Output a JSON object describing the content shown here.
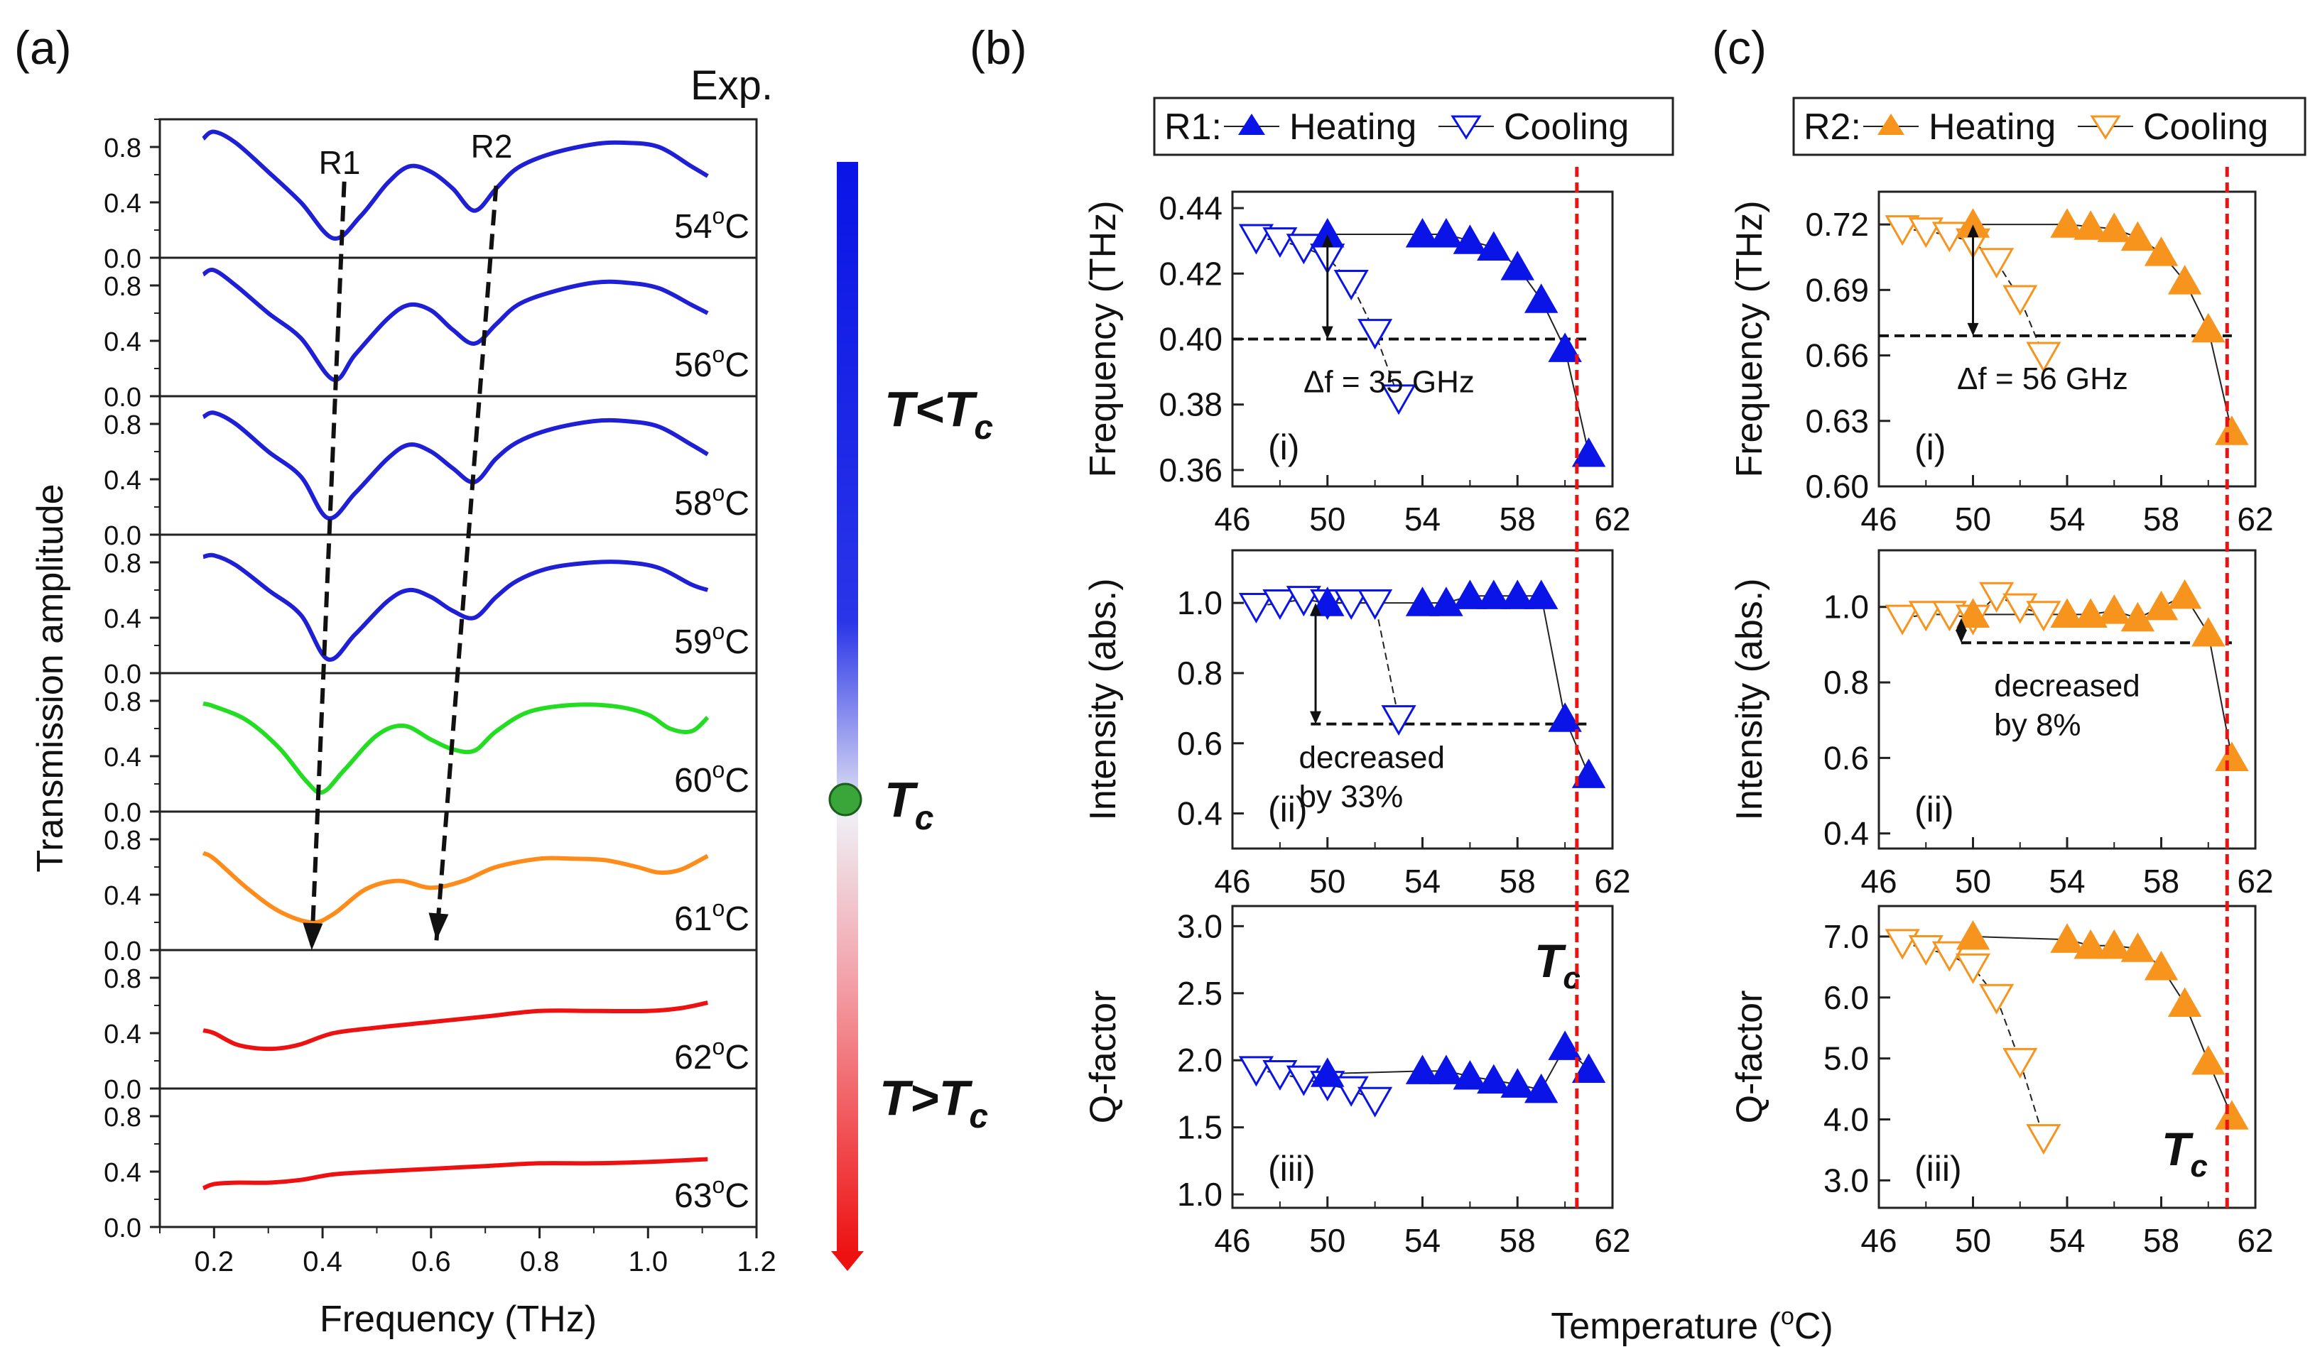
{
  "panel_labels": {
    "a": "(a)",
    "b": "(b)",
    "c": "(c)"
  },
  "colors": {
    "blue": "#1f1fd6",
    "green": "#22dd22",
    "orange": "#ff8c1a",
    "red": "#ee1111",
    "darkgreen": "#2f8a2f",
    "marker_blue": "#0a14e6",
    "marker_orange": "#f7941d"
  },
  "chart_data": [
    {
      "id": "a",
      "type": "line",
      "title": "Exp.",
      "xlabel": "Frequency (THz)",
      "ylabel": "Transmission amplitude",
      "xlim": [
        0.1,
        1.2
      ],
      "xticks": [
        "0.2",
        "0.4",
        "0.6",
        "0.8",
        "1.0",
        "1.2"
      ],
      "ylim": [
        0,
        1
      ],
      "yticks": [
        "0.0",
        "0.4",
        "0.8"
      ],
      "resonance_labels": [
        "R1",
        "R2"
      ],
      "series": [
        {
          "name": "54°C",
          "temp": "54",
          "color": "blue",
          "x": [
            0.18,
            0.2,
            0.24,
            0.3,
            0.36,
            0.42,
            0.47,
            0.52,
            0.56,
            0.6,
            0.64,
            0.68,
            0.72,
            0.76,
            0.82,
            0.9,
            0.96,
            1.02,
            1.08,
            1.11
          ],
          "y": [
            0.86,
            0.91,
            0.83,
            0.62,
            0.4,
            0.14,
            0.3,
            0.54,
            0.66,
            0.62,
            0.5,
            0.34,
            0.5,
            0.65,
            0.75,
            0.82,
            0.83,
            0.8,
            0.66,
            0.59
          ]
        },
        {
          "name": "56°C",
          "temp": "56",
          "color": "blue",
          "x": [
            0.18,
            0.2,
            0.24,
            0.3,
            0.36,
            0.42,
            0.46,
            0.52,
            0.56,
            0.6,
            0.64,
            0.68,
            0.72,
            0.76,
            0.82,
            0.9,
            0.96,
            1.02,
            1.08,
            1.11
          ],
          "y": [
            0.88,
            0.91,
            0.8,
            0.6,
            0.42,
            0.12,
            0.3,
            0.56,
            0.66,
            0.62,
            0.48,
            0.38,
            0.52,
            0.66,
            0.75,
            0.82,
            0.82,
            0.78,
            0.66,
            0.6
          ]
        },
        {
          "name": "58°C",
          "temp": "58",
          "color": "blue",
          "x": [
            0.18,
            0.2,
            0.24,
            0.3,
            0.36,
            0.41,
            0.46,
            0.52,
            0.56,
            0.6,
            0.64,
            0.68,
            0.72,
            0.76,
            0.82,
            0.9,
            0.96,
            1.02,
            1.08,
            1.11
          ],
          "y": [
            0.85,
            0.88,
            0.8,
            0.6,
            0.42,
            0.12,
            0.3,
            0.55,
            0.65,
            0.6,
            0.48,
            0.38,
            0.55,
            0.67,
            0.76,
            0.82,
            0.82,
            0.78,
            0.65,
            0.58
          ]
        },
        {
          "name": "59°C",
          "temp": "59",
          "color": "blue",
          "x": [
            0.18,
            0.2,
            0.24,
            0.3,
            0.36,
            0.41,
            0.46,
            0.52,
            0.56,
            0.6,
            0.64,
            0.68,
            0.72,
            0.76,
            0.82,
            0.9,
            0.96,
            1.02,
            1.08,
            1.11
          ],
          "y": [
            0.84,
            0.85,
            0.78,
            0.6,
            0.42,
            0.1,
            0.28,
            0.52,
            0.6,
            0.55,
            0.45,
            0.4,
            0.55,
            0.67,
            0.76,
            0.8,
            0.8,
            0.76,
            0.64,
            0.6
          ]
        },
        {
          "name": "60°C",
          "temp": "60",
          "color": "green",
          "x": [
            0.18,
            0.2,
            0.26,
            0.32,
            0.37,
            0.4,
            0.44,
            0.5,
            0.55,
            0.6,
            0.64,
            0.68,
            0.72,
            0.78,
            0.86,
            0.94,
            1.0,
            1.04,
            1.08,
            1.11
          ],
          "y": [
            0.78,
            0.76,
            0.66,
            0.46,
            0.22,
            0.14,
            0.3,
            0.55,
            0.62,
            0.52,
            0.45,
            0.44,
            0.58,
            0.72,
            0.77,
            0.76,
            0.7,
            0.6,
            0.58,
            0.68
          ]
        },
        {
          "name": "61°C",
          "temp": "61",
          "color": "orange",
          "x": [
            0.18,
            0.2,
            0.26,
            0.32,
            0.38,
            0.42,
            0.48,
            0.54,
            0.6,
            0.66,
            0.72,
            0.8,
            0.86,
            0.92,
            0.98,
            1.02,
            1.06,
            1.11
          ],
          "y": [
            0.7,
            0.66,
            0.45,
            0.28,
            0.2,
            0.26,
            0.44,
            0.5,
            0.45,
            0.5,
            0.6,
            0.66,
            0.66,
            0.65,
            0.6,
            0.56,
            0.58,
            0.68
          ]
        },
        {
          "name": "62°C",
          "temp": "62",
          "color": "red",
          "x": [
            0.18,
            0.2,
            0.24,
            0.28,
            0.32,
            0.36,
            0.42,
            0.5,
            0.6,
            0.7,
            0.8,
            0.9,
            1.0,
            1.06,
            1.11
          ],
          "y": [
            0.42,
            0.4,
            0.32,
            0.29,
            0.29,
            0.32,
            0.4,
            0.44,
            0.48,
            0.52,
            0.56,
            0.56,
            0.56,
            0.58,
            0.62
          ]
        },
        {
          "name": "63°C",
          "temp": "63",
          "color": "red",
          "x": [
            0.18,
            0.2,
            0.24,
            0.3,
            0.36,
            0.42,
            0.5,
            0.6,
            0.7,
            0.8,
            0.9,
            1.0,
            1.11
          ],
          "y": [
            0.28,
            0.31,
            0.32,
            0.32,
            0.34,
            0.38,
            0.4,
            0.42,
            0.44,
            0.46,
            0.46,
            0.47,
            0.49
          ]
        }
      ],
      "arrows": [
        {
          "label": "R1",
          "x1": 0.44,
          "y1_panel": 0,
          "y1": 0.55,
          "x2": 0.38,
          "y2_panel": 5,
          "y2": 0.0
        },
        {
          "label": "R2",
          "x1": 0.72,
          "y1_panel": 0,
          "y1": 0.52,
          "x2": 0.61,
          "y2_panel": 5,
          "y2": 0.07
        }
      ],
      "colorbar": {
        "labels": [
          {
            "text": "T<T",
            "sub": "c",
            "color": "blue"
          },
          {
            "text": "T",
            "sub": "c",
            "color": "darkgreen"
          },
          {
            "text": "T>T",
            "sub": "c",
            "color": "red"
          }
        ]
      }
    },
    {
      "id": "b",
      "resonance": "R1",
      "color": "marker_blue",
      "legend": {
        "prefix": "R1:",
        "heating": "Heating",
        "cooling": "Cooling"
      },
      "xlabel": "Temperature (",
      "xlabel_sup": "o",
      "xlabel_end": "C)",
      "xlim": [
        46,
        62
      ],
      "xticks": [
        "46",
        "50",
        "54",
        "58",
        "62"
      ],
      "tc_line": 60.5,
      "subplots": [
        {
          "type": "scatter",
          "tag": "(i)",
          "ylabel": "Frequency (THz)",
          "ylim": [
            0.355,
            0.445
          ],
          "yticks": [
            "0.36",
            "0.38",
            "0.40",
            "0.42",
            "0.44"
          ],
          "heating": {
            "x": [
              50,
              54,
              55,
              56,
              57,
              58,
              59,
              60,
              61
            ],
            "y": [
              0.432,
              0.432,
              0.432,
              0.43,
              0.428,
              0.422,
              0.412,
              0.397,
              0.365
            ]
          },
          "cooling": {
            "x": [
              47,
              48,
              49,
              50,
              51,
              52,
              53
            ],
            "y": [
              0.431,
              0.43,
              0.428,
              0.425,
              0.417,
              0.402,
              0.382
            ]
          },
          "hline": {
            "y": 0.4,
            "x1": 46,
            "x2": 61
          },
          "annotation": "Δf = 35 GHz"
        },
        {
          "type": "scatter",
          "tag": "(ii)",
          "ylabel": "Intensity (abs.)",
          "ylim": [
            0.3,
            1.15
          ],
          "yticks": [
            "0.4",
            "0.6",
            "0.8",
            "1.0"
          ],
          "heating": {
            "x": [
              50,
              54,
              55,
              56,
              57,
              58,
              59,
              60,
              61
            ],
            "y": [
              1.0,
              1.0,
              1.0,
              1.02,
              1.02,
              1.02,
              1.02,
              0.67,
              0.51
            ]
          },
          "cooling": {
            "x": [
              47,
              48,
              49,
              50,
              51,
              52,
              53
            ],
            "y": [
              0.99,
              1.0,
              1.01,
              1.0,
              1.0,
              1.0,
              0.67
            ]
          },
          "hline": {
            "y": 0.655,
            "x1": 49.3,
            "x2": 61
          },
          "annotation": "decreased",
          "annotation2": "by 33%"
        },
        {
          "type": "scatter",
          "tag": "(iii)",
          "ylabel": "Q-factor",
          "ylim": [
            0.9,
            3.15
          ],
          "yticks": [
            "1.0",
            "1.5",
            "2.0",
            "2.5",
            "3.0"
          ],
          "heating": {
            "x": [
              50,
              54,
              55,
              56,
              57,
              58,
              59,
              60,
              61
            ],
            "y": [
              1.9,
              1.92,
              1.92,
              1.88,
              1.85,
              1.82,
              1.78,
              2.1,
              1.93
            ]
          },
          "cooling": {
            "x": [
              47,
              48,
              49,
              50,
              51,
              52
            ],
            "y": [
              1.93,
              1.9,
              1.86,
              1.82,
              1.78,
              1.7
            ]
          },
          "tc_label": "T",
          "tc_sub": "c"
        }
      ]
    },
    {
      "id": "c",
      "resonance": "R2",
      "color": "marker_orange",
      "legend": {
        "prefix": "R2:",
        "heating": "Heating",
        "cooling": "Cooling"
      },
      "xlim": [
        46,
        62
      ],
      "xticks": [
        "46",
        "50",
        "54",
        "58",
        "62"
      ],
      "tc_line": 60.8,
      "subplots": [
        {
          "type": "scatter",
          "tag": "(i)",
          "ylabel": "Frequency (THz)",
          "ylim": [
            0.6,
            0.735
          ],
          "yticks": [
            "0.60",
            "0.63",
            "0.66",
            "0.69",
            "0.72"
          ],
          "heating": {
            "x": [
              50,
              54,
              55,
              56,
              57,
              58,
              59,
              60,
              61
            ],
            "y": [
              0.72,
              0.72,
              0.719,
              0.718,
              0.714,
              0.707,
              0.694,
              0.672,
              0.625
            ]
          },
          "cooling": {
            "x": [
              47,
              48,
              49,
              50,
              51,
              52,
              53
            ],
            "y": [
              0.718,
              0.717,
              0.715,
              0.712,
              0.703,
              0.686,
              0.66
            ]
          },
          "hline": {
            "y": 0.669,
            "x1": 46,
            "x2": 61
          },
          "annotation": "Δf = 56 GHz"
        },
        {
          "type": "scatter",
          "tag": "(ii)",
          "ylabel": "Intensity (abs.)",
          "ylim": [
            0.36,
            1.15
          ],
          "yticks": [
            "0.4",
            "0.6",
            "0.8",
            "1.0"
          ],
          "heating": {
            "x": [
              50,
              54,
              55,
              56,
              57,
              58,
              59,
              60,
              61
            ],
            "y": [
              0.98,
              0.98,
              0.98,
              0.99,
              0.97,
              1.0,
              1.03,
              0.93,
              0.6
            ]
          },
          "cooling": {
            "x": [
              47,
              48,
              49,
              50,
              51,
              52,
              53
            ],
            "y": [
              0.97,
              0.98,
              0.98,
              0.97,
              1.03,
              1.0,
              0.98
            ]
          },
          "hline": {
            "y": 0.905,
            "x1": 49.5,
            "x2": 61
          },
          "annotation": "decreased",
          "annotation2": "by 8%"
        },
        {
          "type": "scatter",
          "tag": "(iii)",
          "ylabel": "Q-factor",
          "ylim": [
            2.55,
            7.5
          ],
          "yticks": [
            "3.0",
            "4.0",
            "5.0",
            "6.0",
            "7.0"
          ],
          "heating": {
            "x": [
              50,
              54,
              55,
              56,
              57,
              58,
              59,
              60,
              61
            ],
            "y": [
              7.0,
              6.95,
              6.85,
              6.85,
              6.8,
              6.5,
              5.9,
              4.95,
              4.05
            ]
          },
          "cooling": {
            "x": [
              47,
              48,
              49,
              50,
              51,
              52,
              53
            ],
            "y": [
              6.9,
              6.8,
              6.7,
              6.5,
              6.0,
              4.95,
              3.7
            ]
          },
          "tc_label": "T",
          "tc_sub": "c"
        }
      ]
    }
  ],
  "shared_xlabel": {
    "text": "Temperature (",
    "sup": "o",
    "end": "C)"
  }
}
